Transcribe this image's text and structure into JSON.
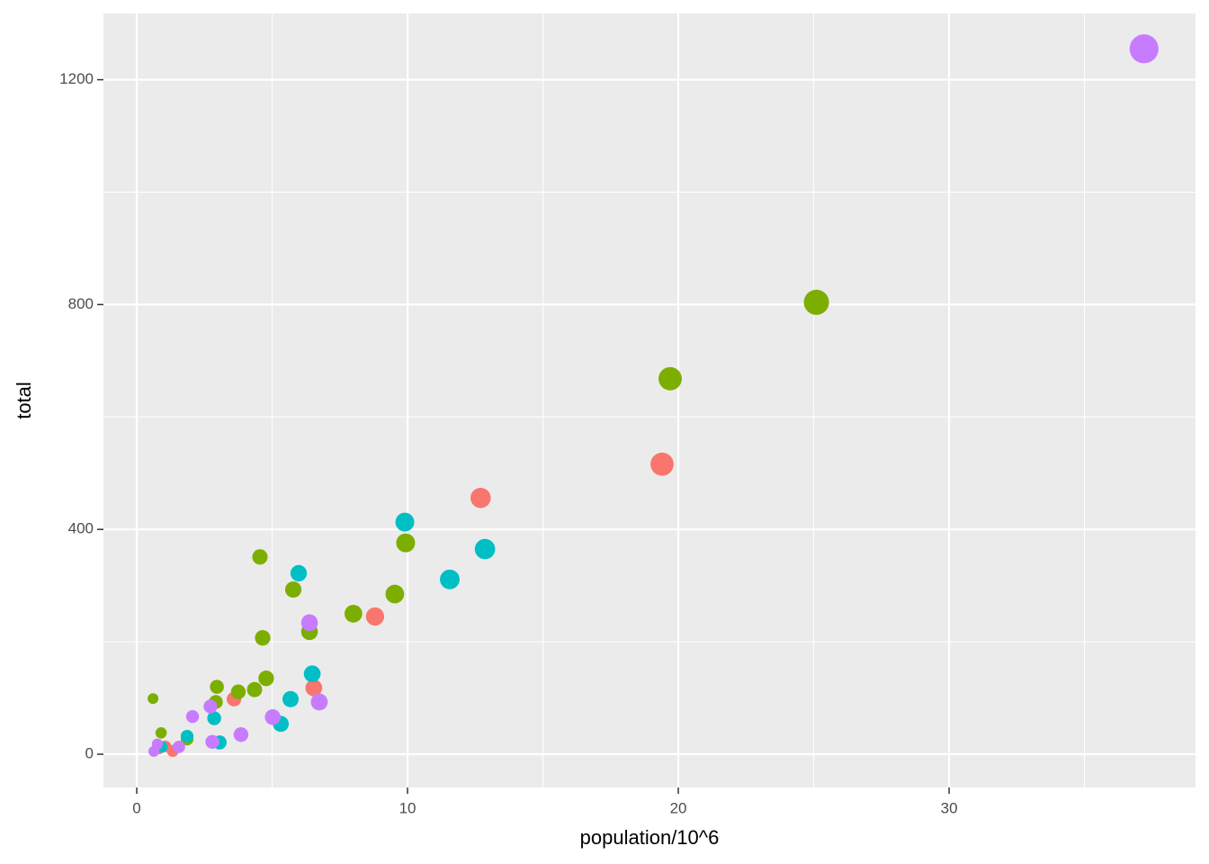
{
  "chart_data": {
    "type": "scatter",
    "x_label": "population/10^6",
    "y_label": "total",
    "xlim": [
      -1.23,
      39.1
    ],
    "ylim": [
      -59.2,
      1317.8
    ],
    "xticks": [
      0,
      10,
      20,
      30
    ],
    "yticks": [
      0,
      400,
      800,
      1200
    ],
    "xminorticks": [
      5,
      15,
      25,
      35
    ],
    "yminorticks": [
      200,
      600,
      1000
    ],
    "grid": true,
    "series": [
      {
        "color": "#F8766D",
        "x": [
          19.4,
          12.7,
          8.8,
          6.54,
          3.59,
          1.33,
          1.06,
          0.83
        ],
        "values": [
          516,
          456,
          245,
          118,
          98,
          6,
          14,
          10
        ]
      },
      {
        "color": "#7CAE00",
        "x": [
          25.1,
          19.7,
          9.93,
          9.53,
          8.0,
          6.38,
          5.78,
          4.55,
          4.65,
          4.78,
          4.35,
          3.75,
          2.96,
          2.92,
          1.86,
          0.9,
          0.6
        ],
        "values": [
          804,
          668,
          376,
          285,
          250,
          218,
          293,
          351,
          207,
          135,
          115,
          111,
          120,
          93,
          27,
          38,
          99
        ]
      },
      {
        "color": "#00BFC4",
        "x": [
          12.86,
          9.9,
          11.56,
          5.98,
          6.48,
          5.68,
          5.32,
          2.86,
          3.06,
          1.86,
          0.93
        ],
        "values": [
          365,
          413,
          311,
          322,
          143,
          98,
          54,
          64,
          21,
          32,
          13
        ]
      },
      {
        "color": "#C77CFF",
        "x": [
          37.2,
          6.38,
          6.74,
          5.02,
          3.85,
          2.79,
          2.72,
          2.06,
          1.56,
          0.76,
          0.63
        ],
        "values": [
          1255,
          234,
          93,
          66,
          35,
          22,
          85,
          67,
          13,
          18,
          5
        ]
      }
    ]
  }
}
